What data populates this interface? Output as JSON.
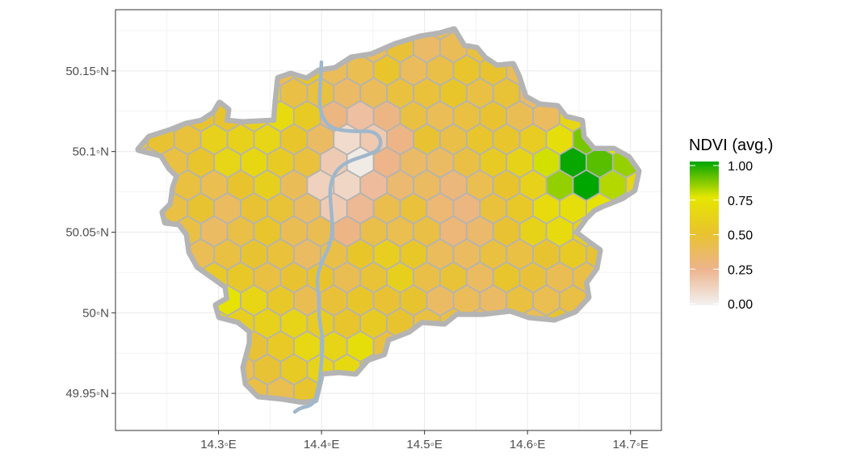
{
  "map": {
    "x_axis": {
      "ticks": [
        {
          "value": 14.3,
          "label": "14.3◦E"
        },
        {
          "value": 14.4,
          "label": "14.4◦E"
        },
        {
          "value": 14.5,
          "label": "14.5◦E"
        },
        {
          "value": 14.6,
          "label": "14.6◦E"
        },
        {
          "value": 14.7,
          "label": "14.7◦E"
        }
      ],
      "range": [
        14.2,
        14.73
      ]
    },
    "y_axis": {
      "ticks": [
        {
          "value": 49.95,
          "label": "49.95◦N"
        },
        {
          "value": 50.0,
          "label": "50◦N"
        },
        {
          "value": 50.05,
          "label": "50.05◦N"
        },
        {
          "value": 50.1,
          "label": "50.1◦N"
        },
        {
          "value": 50.15,
          "label": "50.15◦N"
        }
      ],
      "range": [
        49.927,
        50.188
      ]
    },
    "grid": true,
    "legend": {
      "title": "NDVI (avg.)",
      "position": "right",
      "stops": [
        {
          "value": 1.0,
          "label": "1.00",
          "color": "#00a600"
        },
        {
          "value": 0.75,
          "label": "0.75",
          "color": "#e6e600"
        },
        {
          "value": 0.5,
          "label": "0.50",
          "color": "#e8c32e"
        },
        {
          "value": 0.25,
          "label": "0.25",
          "color": "#edb48e"
        },
        {
          "value": 0.0,
          "label": "0.00",
          "color": "#f2f2f2"
        }
      ]
    },
    "colors": {
      "boundary": "#b4b4b4",
      "river": "#9fb7cb",
      "hex_border": "#b3b3b3"
    }
  },
  "chart_data": {
    "type": "heatmap",
    "title": "",
    "xlabel": "",
    "ylabel": "",
    "value_name": "NDVI (avg.)",
    "value_range": [
      0,
      1
    ],
    "xlim": [
      14.2,
      14.73
    ],
    "ylim": [
      49.927,
      50.188
    ],
    "notes_on_values": "Mostly 0.35-0.55; higher (0.6-0.85) in NE around 14.65-14.7E 50.08-50.09N, in W around 14.3-14.37E 50.10N and 14.31E 49.99N; lowest (0.15-0.25) in center around 14.42-14.45E 50.07-50.1N"
  }
}
